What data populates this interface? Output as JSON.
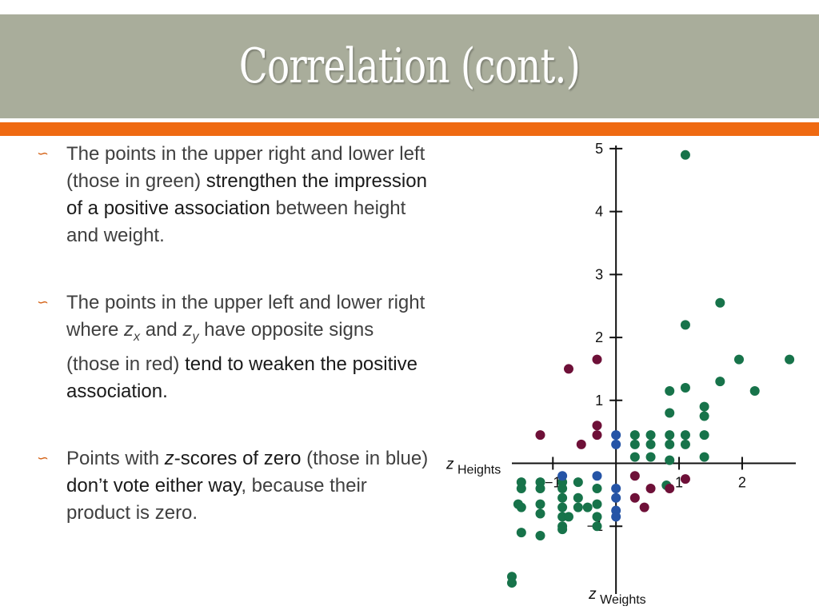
{
  "slide": {
    "title": "Correlation (cont.)"
  },
  "bullets": [
    {
      "marker_icon": "scroll-bullet-icon",
      "runs": [
        {
          "text": "The points in the upper right and lower left (those in green) ",
          "emph": false
        },
        {
          "text": "strengthen the impression of  a positive association",
          "emph": true
        },
        {
          "text": " between height and weight.",
          "emph": false
        }
      ]
    },
    {
      "marker_icon": "scroll-bullet-icon",
      "runs": [
        {
          "text": "The points in the upper left and lower right where ",
          "emph": false
        },
        {
          "text": "z",
          "italic": true,
          "sub": "x"
        },
        {
          "text": " and  ",
          "emph": false
        },
        {
          "text": "z",
          "italic": true,
          "sub": "y"
        },
        {
          "text": " have opposite signs (those in red) ",
          "emph": false
        },
        {
          "text": "tend to weaken the positive association.",
          "emph": true
        }
      ]
    },
    {
      "marker_icon": "scroll-bullet-icon",
      "runs": [
        {
          "text": "Points with ",
          "emph": false
        },
        {
          "text": "z-scores of  zero",
          "emph": true,
          "italic_first": true
        },
        {
          "text": " (those in blue) ",
          "emph": false
        },
        {
          "text": "don’t vote either way",
          "emph": true
        },
        {
          "text": ", because their product is zero.",
          "emph": false
        }
      ]
    }
  ],
  "chart_data": {
    "type": "scatter",
    "x_axis_label": {
      "z": "z",
      "text": "Heights"
    },
    "y_axis_label": {
      "z": "z",
      "text": "Weights"
    },
    "x_ticks": [
      -1,
      1,
      2
    ],
    "x_tick_labels": [
      "−1",
      "1",
      "2"
    ],
    "y_ticks": [
      -1,
      1,
      2,
      3,
      4,
      5
    ],
    "y_tick_labels": [
      "−1",
      "1",
      "2",
      "3",
      "4",
      "5"
    ],
    "xlim": [
      -1.65,
      2.85
    ],
    "ylim": [
      -1.95,
      5.05
    ],
    "colors": {
      "green": "#17734a",
      "red": "#6e1038",
      "blue": "#2554a6",
      "axis": "#111111"
    },
    "series": [
      {
        "group": "green",
        "points": [
          [
            1.1,
            4.9
          ],
          [
            1.65,
            2.55
          ],
          [
            1.1,
            2.2
          ],
          [
            1.95,
            1.65
          ],
          [
            2.75,
            1.65
          ],
          [
            1.65,
            1.3
          ],
          [
            1.1,
            1.2
          ],
          [
            0.85,
            1.15
          ],
          [
            2.2,
            1.15
          ],
          [
            1.4,
            0.9
          ],
          [
            0.85,
            0.8
          ],
          [
            1.4,
            0.75
          ],
          [
            0.3,
            0.45
          ],
          [
            0.55,
            0.45
          ],
          [
            0.85,
            0.45
          ],
          [
            1.1,
            0.45
          ],
          [
            1.4,
            0.45
          ],
          [
            0.3,
            0.3
          ],
          [
            0.55,
            0.3
          ],
          [
            0.85,
            0.3
          ],
          [
            1.1,
            0.3
          ],
          [
            0.3,
            0.1
          ],
          [
            0.55,
            0.1
          ],
          [
            0.85,
            0.05
          ],
          [
            1.4,
            0.1
          ],
          [
            -1.5,
            -0.3
          ],
          [
            -1.2,
            -0.3
          ],
          [
            -1.5,
            -0.4
          ],
          [
            -1.2,
            -0.4
          ],
          [
            -0.85,
            -0.3
          ],
          [
            -0.6,
            -0.3
          ],
          [
            -0.85,
            -0.4
          ],
          [
            -0.3,
            -0.4
          ],
          [
            -0.85,
            -0.55
          ],
          [
            -0.6,
            -0.55
          ],
          [
            -1.55,
            -0.65
          ],
          [
            -1.5,
            -0.7
          ],
          [
            -1.2,
            -0.65
          ],
          [
            -0.85,
            -0.7
          ],
          [
            -0.6,
            -0.7
          ],
          [
            -0.45,
            -0.7
          ],
          [
            -0.3,
            -0.65
          ],
          [
            -1.2,
            -0.8
          ],
          [
            -0.85,
            -0.85
          ],
          [
            -0.75,
            -0.85
          ],
          [
            -0.3,
            -0.85
          ],
          [
            -0.85,
            -1.0
          ],
          [
            -0.3,
            -1.0
          ],
          [
            -1.5,
            -1.1
          ],
          [
            -1.2,
            -1.15
          ],
          [
            -0.85,
            -1.05
          ],
          [
            -1.65,
            -1.8
          ],
          [
            -1.65,
            -1.9
          ],
          [
            0.8,
            -0.35
          ]
        ]
      },
      {
        "group": "red",
        "points": [
          [
            -0.3,
            1.65
          ],
          [
            -0.75,
            1.5
          ],
          [
            -0.3,
            0.6
          ],
          [
            -1.2,
            0.45
          ],
          [
            -0.3,
            0.45
          ],
          [
            -0.55,
            0.3
          ],
          [
            1.1,
            -0.25
          ],
          [
            0.3,
            -0.2
          ],
          [
            0.55,
            -0.4
          ],
          [
            0.85,
            -0.4
          ],
          [
            0.3,
            -0.55
          ],
          [
            0.45,
            -0.7
          ]
        ]
      },
      {
        "group": "blue",
        "points": [
          [
            0.0,
            0.45
          ],
          [
            0.0,
            0.3
          ],
          [
            -0.85,
            -0.2
          ],
          [
            -0.3,
            -0.2
          ],
          [
            0.0,
            -0.4
          ],
          [
            0.0,
            -0.55
          ],
          [
            0.0,
            -0.75
          ],
          [
            0.0,
            -0.85
          ]
        ]
      }
    ]
  }
}
